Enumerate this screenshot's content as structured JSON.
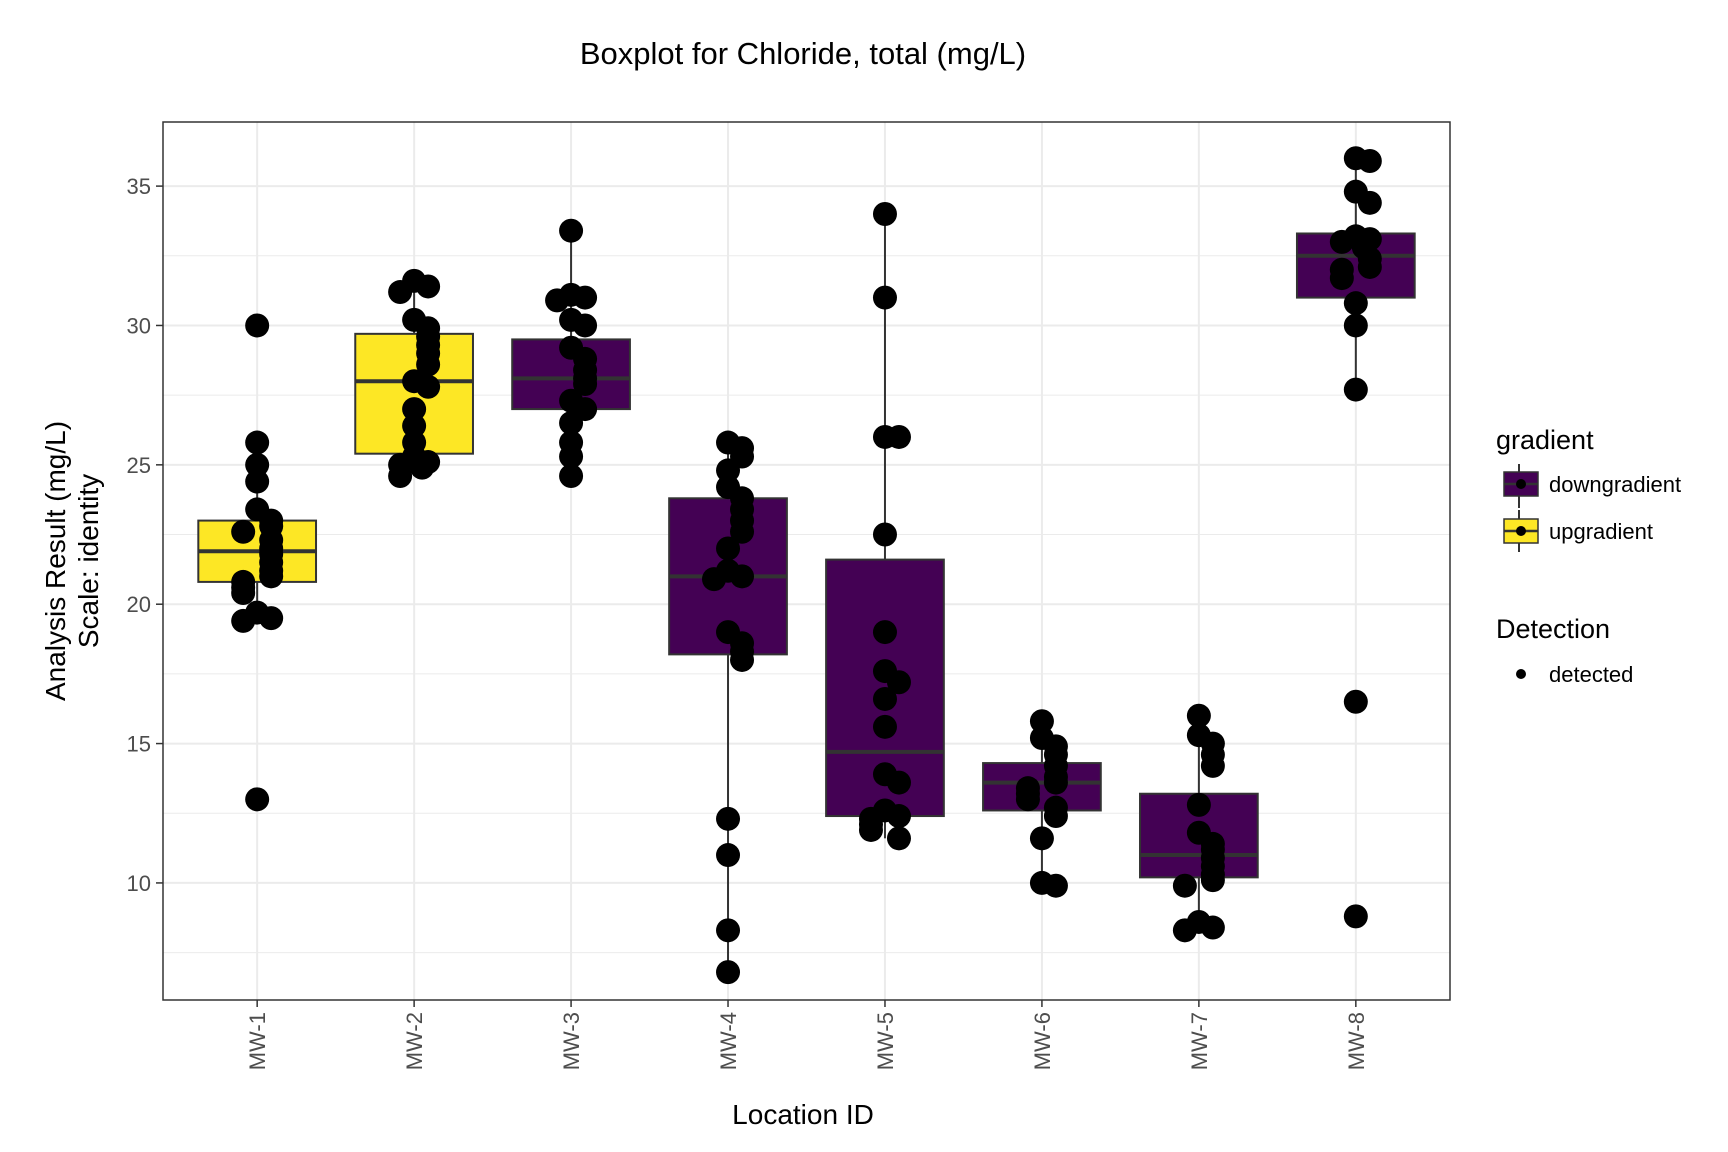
{
  "chart_data": {
    "type": "boxplot",
    "title": "Boxplot for Chloride, total (mg/L)",
    "xlabel": "Location ID",
    "ylabel": "Analysis Result (mg/L)",
    "ylabel2": "Scale: identity",
    "ylim": [
      5.8,
      37.3
    ],
    "yticks": [
      10,
      15,
      20,
      25,
      30,
      35
    ],
    "grid": true,
    "legend_position": "right",
    "colors": {
      "downgradient": "#440154",
      "upgradient": "#FDE725",
      "points": "#000000"
    },
    "categories": [
      "MW-1",
      "MW-2",
      "MW-3",
      "MW-4",
      "MW-5",
      "MW-6",
      "MW-7",
      "MW-8"
    ],
    "boxes": [
      {
        "loc": "MW-1",
        "gradient": "upgradient",
        "whisker_low": 19.4,
        "q1": 20.8,
        "median": 21.9,
        "q3": 23.0,
        "whisker_high": 25.8,
        "points": [
          30.0,
          13.0,
          25.8,
          25.0,
          24.4,
          23.4,
          23.0,
          22.8,
          22.6,
          22.3,
          22.0,
          21.8,
          21.5,
          21.2,
          21.0,
          20.8,
          20.6,
          20.4,
          19.7,
          19.5,
          19.4
        ]
      },
      {
        "loc": "MW-2",
        "gradient": "upgradient",
        "whisker_low": 24.6,
        "q1": 25.4,
        "median": 28.0,
        "q3": 29.7,
        "whisker_high": 31.6,
        "points": [
          31.6,
          31.4,
          31.2,
          30.2,
          29.9,
          29.6,
          29.3,
          29.0,
          28.6,
          28.0,
          27.8,
          27.0,
          26.4,
          25.8,
          25.3,
          25.1,
          25.0,
          24.9,
          24.6
        ]
      },
      {
        "loc": "MW-3",
        "gradient": "downgradient",
        "whisker_low": 24.6,
        "q1": 27.0,
        "median": 28.1,
        "q3": 29.5,
        "whisker_high": 33.4,
        "points": [
          33.4,
          31.1,
          31.0,
          30.9,
          30.2,
          30.0,
          29.2,
          28.8,
          28.4,
          28.1,
          27.9,
          27.3,
          27.0,
          26.5,
          25.8,
          25.3,
          24.6
        ]
      },
      {
        "loc": "MW-4",
        "gradient": "downgradient",
        "whisker_low": 6.8,
        "q1": 18.2,
        "median": 21.0,
        "q3": 23.8,
        "whisker_high": 25.8,
        "points": [
          25.8,
          25.6,
          25.3,
          24.8,
          24.2,
          23.8,
          23.4,
          23.0,
          22.6,
          22.0,
          21.2,
          21.0,
          20.9,
          19.0,
          18.6,
          18.3,
          18.0,
          12.3,
          11.0,
          8.3,
          6.8
        ]
      },
      {
        "loc": "MW-5",
        "gradient": "downgradient",
        "whisker_low": 11.6,
        "q1": 12.4,
        "median": 14.7,
        "q3": 21.6,
        "whisker_high": 34.0,
        "points": [
          34.0,
          31.0,
          26.0,
          26.0,
          22.5,
          19.0,
          17.6,
          17.2,
          16.6,
          15.6,
          13.9,
          13.6,
          12.6,
          12.4,
          12.3,
          12.1,
          11.9,
          11.6
        ]
      },
      {
        "loc": "MW-6",
        "gradient": "downgradient",
        "whisker_low": 9.9,
        "q1": 12.6,
        "median": 13.6,
        "q3": 14.3,
        "whisker_high": 15.8,
        "points": [
          15.8,
          15.2,
          14.9,
          14.6,
          14.2,
          13.8,
          13.6,
          13.4,
          13.2,
          13.0,
          12.7,
          12.4,
          11.6,
          10.0,
          9.9
        ]
      },
      {
        "loc": "MW-7",
        "gradient": "downgradient",
        "whisker_low": 8.3,
        "q1": 10.2,
        "median": 11.0,
        "q3": 13.2,
        "whisker_high": 16.0,
        "points": [
          16.0,
          15.3,
          15.0,
          14.6,
          14.2,
          12.8,
          11.8,
          11.4,
          11.2,
          10.9,
          10.6,
          10.3,
          10.1,
          9.9,
          8.6,
          8.4,
          8.3
        ]
      },
      {
        "loc": "MW-8",
        "gradient": "downgradient",
        "whisker_low": 27.7,
        "q1": 31.0,
        "median": 32.5,
        "q3": 33.3,
        "whisker_high": 36.0,
        "points": [
          36.0,
          35.9,
          34.8,
          34.4,
          33.2,
          33.1,
          33.0,
          32.8,
          32.4,
          32.1,
          32.0,
          31.7,
          30.8,
          30.0,
          27.7,
          16.5,
          8.8
        ]
      }
    ],
    "legend": {
      "gradient_title": "gradient",
      "gradient_items": [
        "downgradient",
        "upgradient"
      ],
      "detection_title": "Detection",
      "detection_items": [
        "detected"
      ]
    }
  }
}
